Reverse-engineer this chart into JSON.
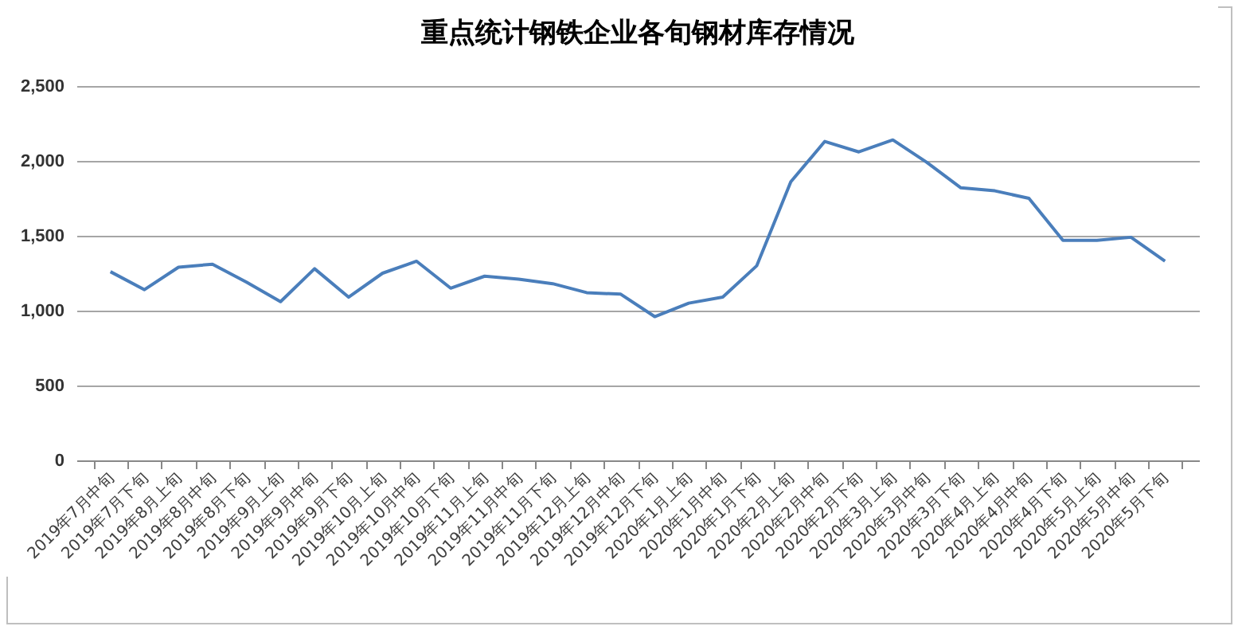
{
  "chart_data": {
    "type": "line",
    "title": "重点统计钢铁企业各旬钢材库存情况",
    "categories": [
      "2019年7月中旬",
      "2019年7月下旬",
      "2019年8月上旬",
      "2019年8月中旬",
      "2019年8月下旬",
      "2019年9月上旬",
      "2019年9月中旬",
      "2019年9月下旬",
      "2019年10月上旬",
      "2019年10月中旬",
      "2019年10月下旬",
      "2019年11月上旬",
      "2019年11月中旬",
      "2019年11月下旬",
      "2019年12月上旬",
      "2019年12月中旬",
      "2019年12月下旬",
      "2020年1月上旬",
      "2020年1月中旬",
      "2020年1月下旬",
      "2020年2月上旬",
      "2020年2月中旬",
      "2020年2月下旬",
      "2020年3月上旬",
      "2020年3月中旬",
      "2020年3月下旬",
      "2020年4月上旬",
      "2020年4月中旬",
      "2020年4月下旬",
      "2020年5月上旬",
      "2020年5月中旬",
      "2020年5月下旬"
    ],
    "series": [
      {
        "color": "#4a7ebb",
        "values": [
          1260,
          1140,
          1290,
          1310,
          1190,
          1060,
          1280,
          1090,
          1250,
          1330,
          1150,
          1230,
          1210,
          1180,
          1120,
          1110,
          960,
          1050,
          1090,
          1300,
          1860,
          2130,
          2060,
          2140,
          1990,
          1820,
          1800,
          1750,
          1470,
          1470,
          1490,
          1330
        ]
      }
    ],
    "ylim": [
      0,
      2500
    ],
    "yticks": [
      {
        "value": 0,
        "label": "0"
      },
      {
        "value": 500,
        "label": "500"
      },
      {
        "value": 1000,
        "label": "1,000"
      },
      {
        "value": 1500,
        "label": "1,500"
      },
      {
        "value": 2000,
        "label": "2,000"
      },
      {
        "value": 2500,
        "label": "2,500"
      }
    ],
    "grid": "y",
    "marker": "none",
    "line_style": "solid"
  }
}
